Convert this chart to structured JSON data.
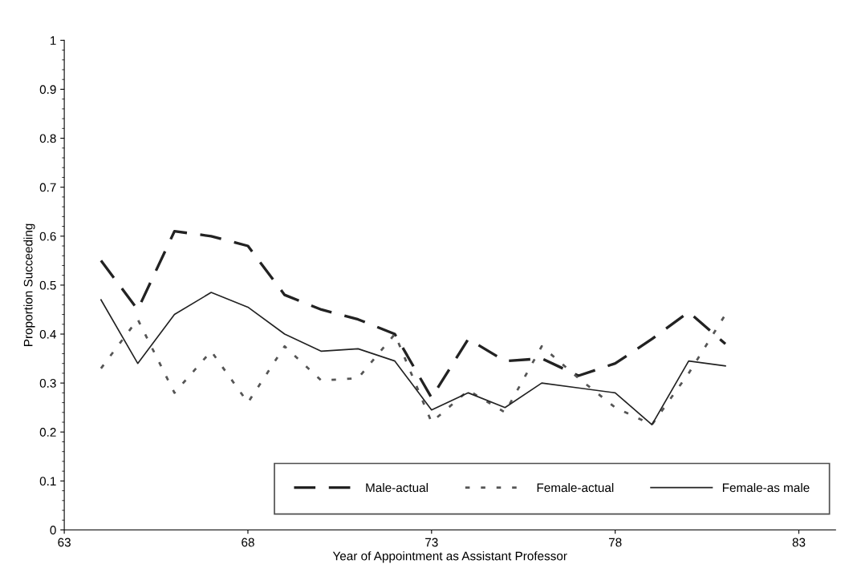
{
  "chart_data": {
    "type": "line",
    "xlabel": "Year of Appointment as Assistant Professor",
    "ylabel": "Proportion Succeeding",
    "x": [
      64,
      65,
      66,
      67,
      68,
      69,
      70,
      71,
      72,
      73,
      74,
      75,
      76,
      77,
      78,
      79,
      80,
      81
    ],
    "series": [
      {
        "name": "Male-actual",
        "color": "#222222",
        "line_style": "dashed",
        "values": [
          0.55,
          0.45,
          0.61,
          0.6,
          0.58,
          0.48,
          0.45,
          0.43,
          0.4,
          0.27,
          0.39,
          0.345,
          0.35,
          0.315,
          0.34,
          0.39,
          0.445,
          0.38
        ]
      },
      {
        "name": "Female-actual",
        "color": "#555555",
        "line_style": "dotted",
        "values": [
          0.33,
          0.43,
          0.28,
          0.365,
          0.26,
          0.375,
          0.305,
          0.31,
          0.4,
          0.22,
          0.285,
          0.24,
          0.375,
          0.31,
          0.25,
          0.215,
          0.32,
          0.44
        ]
      },
      {
        "name": "Female-as male",
        "color": "#222222",
        "line_style": "solid",
        "values": [
          0.47,
          0.34,
          0.44,
          0.485,
          0.455,
          0.4,
          0.365,
          0.37,
          0.345,
          0.245,
          0.28,
          0.25,
          0.3,
          0.29,
          0.28,
          0.215,
          0.345,
          0.335
        ]
      }
    ],
    "xlim": [
      63,
      84
    ],
    "xticks": [
      63,
      68,
      73,
      78,
      83
    ],
    "ylim": [
      0,
      1
    ],
    "yticks": [
      0,
      0.1,
      0.2,
      0.3,
      0.4,
      0.5,
      0.6,
      0.7,
      0.8,
      0.9,
      1
    ],
    "legend": "bottom right",
    "grid": false,
    "marker": "none"
  }
}
